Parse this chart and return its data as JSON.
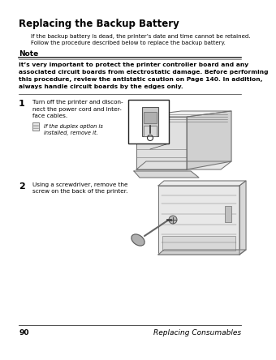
{
  "bg_color": "#ffffff",
  "title": "Replacing the Backup Battery",
  "intro_lines": [
    "If the backup battery is dead, the printer’s date and time cannot be retained.",
    "Follow the procedure described below to replace the backup battery."
  ],
  "note_label": "Note",
  "note_text_lines": [
    "It’s very important to protect the printer controller board and any",
    "associated circuit boards from electrostatic damage. Before performing",
    "this procedure, review the antistatic caution on Page 140. In addition,",
    "always handle circuit boards by the edges only."
  ],
  "step1_num": "1",
  "step1_text_lines": [
    "Turn off the printer and discon-",
    "nect the power cord and inter-",
    "face cables."
  ],
  "step1_note_text_lines": [
    "If the duplex option is",
    "installed, remove it."
  ],
  "step2_num": "2",
  "step2_text_lines": [
    "Using a screwdriver, remove the",
    "screw on the back of the printer."
  ],
  "footer_page": "90",
  "footer_text": "Replacing Consumables",
  "line_color": "#555555",
  "dark_line": "#222222",
  "light_gray": "#c8c8c8",
  "mid_gray": "#a0a0a0",
  "dark_gray": "#707070"
}
